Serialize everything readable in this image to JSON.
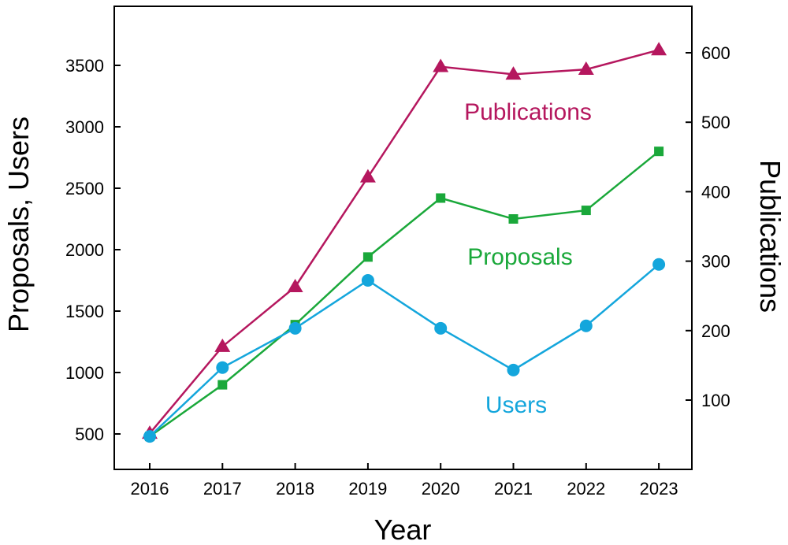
{
  "chart_data": {
    "type": "line",
    "x": [
      2016,
      2017,
      2018,
      2019,
      2020,
      2021,
      2022,
      2023
    ],
    "xlabel": "Year",
    "ylabel_left": "Proposals, Users",
    "ylabel_right": "Publications",
    "ylim_left": [
      250,
      3900
    ],
    "yticks_left": [
      500,
      1000,
      1500,
      2000,
      2500,
      3000,
      3500
    ],
    "ylim_right": [
      15,
      660
    ],
    "yticks_right": [
      100,
      200,
      300,
      400,
      500,
      600
    ],
    "grid": false,
    "series": [
      {
        "name": "Publications",
        "axis": "right",
        "color": "#B5175E",
        "marker": "triangle",
        "values": [
          52,
          177,
          263,
          421,
          580,
          569,
          576,
          604
        ]
      },
      {
        "name": "Proposals",
        "axis": "left",
        "color": "#1AA83A",
        "marker": "square",
        "values": [
          480,
          900,
          1390,
          1940,
          2420,
          2250,
          2320,
          2800
        ]
      },
      {
        "name": "Users",
        "axis": "left",
        "color": "#14A6DC",
        "marker": "circle",
        "values": [
          480,
          1040,
          1360,
          1750,
          1360,
          1020,
          1380,
          1880
        ]
      }
    ]
  }
}
